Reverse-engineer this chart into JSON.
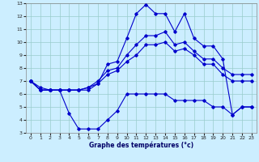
{
  "xlabel": "Graphe des températures (°c)",
  "bg_color": "#cceeff",
  "grid_color": "#99cccc",
  "line_color": "#0000cc",
  "hours": [
    0,
    1,
    2,
    3,
    4,
    5,
    6,
    7,
    8,
    9,
    10,
    11,
    12,
    13,
    14,
    15,
    16,
    17,
    18,
    19,
    20,
    21,
    22,
    23
  ],
  "line_min": [
    7.0,
    6.3,
    6.3,
    6.3,
    4.5,
    3.3,
    3.3,
    3.3,
    4.0,
    4.7,
    6.0,
    6.0,
    6.0,
    6.0,
    6.0,
    5.5,
    5.5,
    5.5,
    5.5,
    5.0,
    5.0,
    4.4,
    5.0,
    5.0
  ],
  "line_max": [
    7.0,
    6.5,
    6.3,
    6.3,
    6.3,
    6.3,
    6.3,
    6.8,
    8.3,
    8.5,
    10.3,
    12.2,
    12.9,
    12.2,
    12.2,
    10.8,
    12.2,
    10.3,
    9.7,
    9.7,
    8.7,
    4.4,
    5.0,
    5.0
  ],
  "line_a": [
    7.0,
    6.3,
    6.3,
    6.3,
    6.3,
    6.3,
    6.5,
    7.0,
    7.8,
    8.0,
    9.0,
    9.8,
    10.5,
    10.5,
    10.8,
    9.8,
    10.0,
    9.3,
    8.7,
    8.7,
    8.0,
    7.5,
    7.5,
    7.5
  ],
  "line_b": [
    7.0,
    6.3,
    6.3,
    6.3,
    6.3,
    6.3,
    6.5,
    6.8,
    7.5,
    7.8,
    8.5,
    9.0,
    9.8,
    9.8,
    10.0,
    9.3,
    9.5,
    9.0,
    8.3,
    8.3,
    7.5,
    7.0,
    7.0,
    7.0
  ],
  "xlim": [
    -0.5,
    23.5
  ],
  "ylim": [
    3,
    13
  ],
  "yticks": [
    3,
    4,
    5,
    6,
    7,
    8,
    9,
    10,
    11,
    12,
    13
  ],
  "xticks": [
    0,
    1,
    2,
    3,
    4,
    5,
    6,
    7,
    8,
    9,
    10,
    11,
    12,
    13,
    14,
    15,
    16,
    17,
    18,
    19,
    20,
    21,
    22,
    23
  ]
}
